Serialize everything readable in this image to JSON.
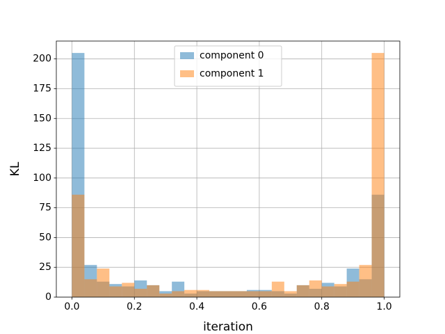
{
  "chart_data": {
    "type": "histogram",
    "xlabel": "iteration",
    "ylabel": "KL",
    "bins": [
      0,
      0.04,
      0.08,
      0.12,
      0.16,
      0.2,
      0.24,
      0.28,
      0.32,
      0.36,
      0.4,
      0.44,
      0.48,
      0.52,
      0.56,
      0.6,
      0.64,
      0.68,
      0.72,
      0.76,
      0.8,
      0.84,
      0.88,
      0.92,
      0.96,
      1
    ],
    "series": [
      {
        "name": "component 0",
        "color": "#1f77b4",
        "values": [
          205,
          27,
          13,
          11,
          9,
          14,
          10,
          5,
          13,
          3,
          5,
          5,
          5,
          5,
          6,
          6,
          5,
          3,
          10,
          7,
          12,
          9,
          24,
          15,
          86
        ]
      },
      {
        "name": "component 1",
        "color": "#ff7f0e",
        "values": [
          86,
          15,
          24,
          9,
          12,
          7,
          10,
          3,
          5,
          6,
          6,
          5,
          5,
          5,
          5,
          5,
          13,
          5,
          10,
          14,
          9,
          11,
          13,
          27,
          205
        ]
      }
    ],
    "alpha": 0.5,
    "xlim": [
      -0.05,
      1.05
    ],
    "xticks": [
      {
        "value": 0,
        "label": "0.0"
      },
      0.2,
      0.4,
      0.6,
      0.8,
      {
        "value": 1,
        "label": "1.0"
      }
    ],
    "ylim": [
      0,
      215
    ],
    "yticks": [
      0,
      25,
      50,
      75,
      100,
      125,
      150,
      175,
      200
    ],
    "grid": true,
    "legend": "upper center"
  }
}
